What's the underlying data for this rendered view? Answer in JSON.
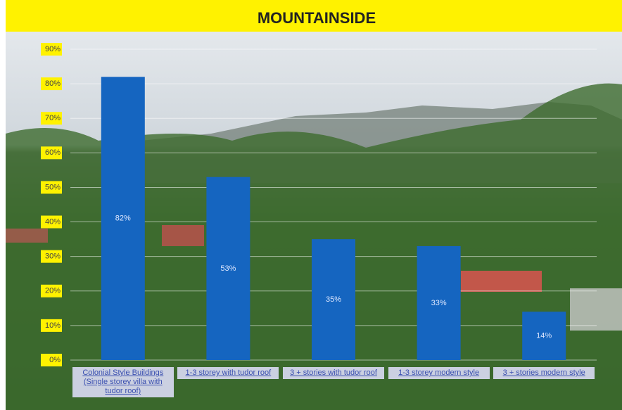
{
  "chart_data": {
    "type": "bar",
    "title": "MOUNTAINSIDE",
    "categories": [
      "Colonial Style Buildings (Single storey villa with tudor roof)",
      "1-3 storey with tudor roof",
      "3 + stories with tudor roof",
      "1-3 storey modern style",
      "3 + stories modern style"
    ],
    "values": [
      82,
      53,
      35,
      33,
      14
    ],
    "value_labels": [
      "82%",
      "53%",
      "35%",
      "33%",
      "14%"
    ],
    "color": "#1565c0",
    "ylim": [
      0,
      90
    ],
    "yticks": [
      {
        "value": 0,
        "label": "0%"
      },
      {
        "value": 10,
        "label": "10%"
      },
      {
        "value": 20,
        "label": "20%"
      },
      {
        "value": 30,
        "label": "30%"
      },
      {
        "value": 40,
        "label": "40%"
      },
      {
        "value": 50,
        "label": "50%"
      },
      {
        "value": 60,
        "label": "60%"
      },
      {
        "value": 70,
        "label": "70%"
      },
      {
        "value": 80,
        "label": "80%"
      },
      {
        "value": 90,
        "label": "90%"
      }
    ],
    "grid": true
  }
}
